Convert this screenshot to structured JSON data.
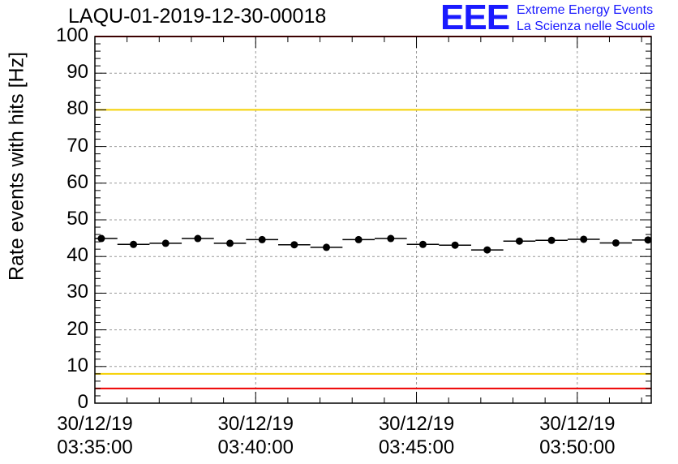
{
  "header": {
    "title": "LAQU-01-2019-12-30-00018",
    "logo_text": "EEE",
    "logo_line1": "Extreme Energy Events",
    "logo_line2": "La Scienza nelle Scuole"
  },
  "colors": {
    "logo": "#1a1aff",
    "red_line": "#ee0000",
    "yellow_line": "#f5d000",
    "grid": "#999999",
    "points": "#000000"
  },
  "chart_data": {
    "type": "scatter",
    "title": "LAQU-01-2019-12-30-00018",
    "ylabel": "Rate events with hits [Hz]",
    "xlabel": "",
    "ylim": [
      0,
      100
    ],
    "xlim_minutes": [
      0,
      17.3
    ],
    "yticks": [
      0,
      10,
      20,
      30,
      40,
      50,
      60,
      70,
      80,
      90,
      100
    ],
    "xticks": [
      {
        "minute": 0,
        "date": "30/12/19",
        "time": "03:35:00"
      },
      {
        "minute": 5,
        "date": "30/12/19",
        "time": "03:40:00"
      },
      {
        "minute": 10,
        "date": "30/12/19",
        "time": "03:45:00"
      },
      {
        "minute": 15,
        "date": "30/12/19",
        "time": "03:50:00"
      }
    ],
    "bin_width_minutes": 1.0,
    "x": [
      0.2,
      1.2,
      2.2,
      3.2,
      4.2,
      5.2,
      6.2,
      7.2,
      8.2,
      9.2,
      10.2,
      11.2,
      12.2,
      13.2,
      14.2,
      15.2,
      16.2,
      17.2
    ],
    "values": [
      44.9,
      43.3,
      43.6,
      44.9,
      43.6,
      44.6,
      43.2,
      42.5,
      44.6,
      44.9,
      43.3,
      43.1,
      41.8,
      44.2,
      44.4,
      44.7,
      43.7,
      44.5
    ],
    "reference_lines": [
      {
        "y": 100,
        "color": "red"
      },
      {
        "y": 80,
        "color": "yellow"
      },
      {
        "y": 8,
        "color": "yellow"
      },
      {
        "y": 4,
        "color": "red"
      }
    ],
    "grid": true
  }
}
